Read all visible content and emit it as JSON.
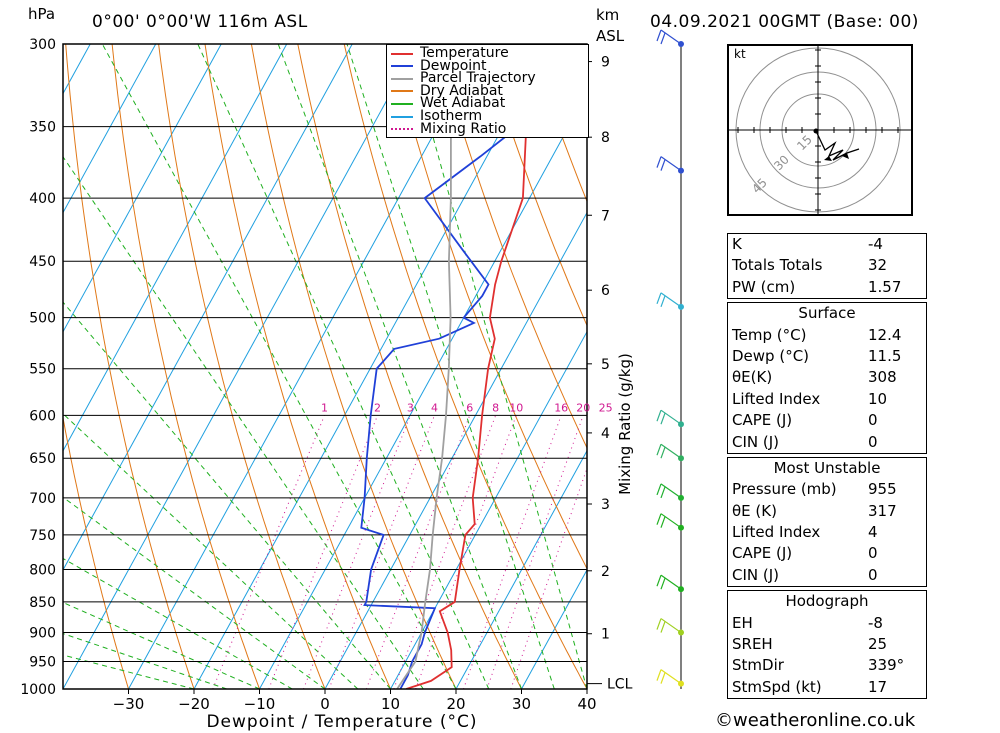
{
  "header": {
    "location": "0°00' 0°00'W 116m ASL",
    "datetime": "04.09.2021 00GMT (Base: 00)",
    "pressure_unit": "hPa",
    "height_unit_line1": "km",
    "height_unit_line2": "ASL"
  },
  "chart_data": {
    "type": "line",
    "title": "",
    "xlabel": "Dewpoint / Temperature (°C)",
    "ylabel": "hPa",
    "y2label": "Mixing Ratio (g/kg)",
    "y_scale": "log",
    "xlim": [
      -40,
      40
    ],
    "ylim": [
      1000,
      300
    ],
    "x_ticks": [
      -30,
      -20,
      -10,
      0,
      10,
      20,
      30,
      40
    ],
    "pressure_levels": [
      300,
      350,
      400,
      450,
      500,
      550,
      600,
      650,
      700,
      750,
      800,
      850,
      900,
      950,
      1000
    ],
    "height_km_ticks": [
      {
        "km": "1",
        "p": 902
      },
      {
        "km": "2",
        "p": 802
      },
      {
        "km": "3",
        "p": 708
      },
      {
        "km": "4",
        "p": 620
      },
      {
        "km": "5",
        "p": 545
      },
      {
        "km": "6",
        "p": 475
      },
      {
        "km": "7",
        "p": 413
      },
      {
        "km": "8",
        "p": 357
      },
      {
        "km": "9",
        "p": 310
      }
    ],
    "lcl": {
      "label": "LCL",
      "p": 990
    },
    "mixing_ratio_labels": [
      "1",
      "2",
      "3",
      "4",
      "6",
      "8",
      "10",
      "16",
      "20",
      "25"
    ],
    "legend": [
      {
        "name": "Temperature",
        "color": "#e03030"
      },
      {
        "name": "Dewpoint",
        "color": "#2040d8"
      },
      {
        "name": "Parcel Trajectory",
        "color": "#a0a0a0"
      },
      {
        "name": "Dry Adiabat",
        "color": "#e07818"
      },
      {
        "name": "Wet Adiabat",
        "color": "#20b020"
      },
      {
        "name": "Isotherm",
        "color": "#20a0e0"
      },
      {
        "name": "Mixing Ratio",
        "color": "#d01890"
      }
    ],
    "series": [
      {
        "name": "Temperature",
        "color": "#e03030",
        "points": [
          [
            1000,
            12.4
          ],
          [
            985,
            15.5
          ],
          [
            960,
            17.5
          ],
          [
            930,
            16
          ],
          [
            900,
            14
          ],
          [
            865,
            11
          ],
          [
            850,
            12.5
          ],
          [
            800,
            10.5
          ],
          [
            750,
            8.5
          ],
          [
            735,
            9
          ],
          [
            700,
            6.5
          ],
          [
            650,
            4
          ],
          [
            600,
            1
          ],
          [
            550,
            -2
          ],
          [
            520,
            -3.5
          ],
          [
            500,
            -6
          ],
          [
            470,
            -8
          ],
          [
            450,
            -9
          ],
          [
            400,
            -11
          ],
          [
            350,
            -16.5
          ],
          [
            300,
            -22
          ]
        ]
      },
      {
        "name": "Dewpoint",
        "color": "#2040d8",
        "points": [
          [
            1000,
            11.5
          ],
          [
            975,
            11.5
          ],
          [
            950,
            11
          ],
          [
            920,
            11
          ],
          [
            900,
            10.5
          ],
          [
            860,
            10
          ],
          [
            855,
            -1
          ],
          [
            850,
            -1
          ],
          [
            800,
            -3
          ],
          [
            750,
            -4
          ],
          [
            740,
            -8
          ],
          [
            700,
            -10
          ],
          [
            650,
            -13
          ],
          [
            600,
            -16
          ],
          [
            550,
            -19
          ],
          [
            530,
            -18
          ],
          [
            520,
            -12
          ],
          [
            505,
            -8
          ],
          [
            500,
            -10
          ],
          [
            480,
            -9
          ],
          [
            470,
            -9
          ],
          [
            440,
            -16
          ],
          [
            400,
            -26
          ],
          [
            370,
            -21
          ],
          [
            340,
            -16
          ],
          [
            310,
            -13
          ],
          [
            300,
            -14
          ]
        ]
      },
      {
        "name": "Parcel Trajectory",
        "color": "#a0a0a0",
        "points": [
          [
            1000,
            11
          ],
          [
            950,
            11.5
          ],
          [
            900,
            10
          ],
          [
            850,
            8
          ],
          [
            800,
            6
          ],
          [
            750,
            3.5
          ],
          [
            700,
            1
          ],
          [
            650,
            -1.5
          ],
          [
            600,
            -4.5
          ],
          [
            550,
            -8
          ],
          [
            500,
            -12
          ],
          [
            450,
            -17
          ],
          [
            400,
            -22
          ],
          [
            350,
            -28
          ],
          [
            300,
            -35
          ]
        ]
      }
    ]
  },
  "hodograph": {
    "unit": "kt",
    "rings": [
      "15",
      "30",
      "45"
    ]
  },
  "wind_barbs": [
    {
      "p": 300,
      "color": "#3050d0"
    },
    {
      "p": 380,
      "color": "#3050d0"
    },
    {
      "p": 490,
      "color": "#30b0d0"
    },
    {
      "p": 610,
      "color": "#30b090"
    },
    {
      "p": 650,
      "color": "#30b060"
    },
    {
      "p": 700,
      "color": "#20b030"
    },
    {
      "p": 740,
      "color": "#20b020"
    },
    {
      "p": 830,
      "color": "#20b020"
    },
    {
      "p": 900,
      "color": "#a0d020"
    },
    {
      "p": 990,
      "color": "#e0e020"
    }
  ],
  "indices": {
    "general": [
      {
        "label": "K",
        "value": "-4"
      },
      {
        "label": "Totals Totals",
        "value": "32"
      },
      {
        "label": "PW (cm)",
        "value": "1.57"
      }
    ],
    "surface_title": "Surface",
    "surface": [
      {
        "label": "Temp (°C)",
        "value": "12.4"
      },
      {
        "label": "Dewp (°C)",
        "value": "11.5"
      },
      {
        "label": "θE(K)",
        "value": "308"
      },
      {
        "label": "Lifted Index",
        "value": "10"
      },
      {
        "label": "CAPE (J)",
        "value": "0"
      },
      {
        "label": "CIN (J)",
        "value": "0"
      }
    ],
    "unstable_title": "Most Unstable",
    "unstable": [
      {
        "label": "Pressure (mb)",
        "value": "955"
      },
      {
        "label": "θE (K)",
        "value": "317"
      },
      {
        "label": "Lifted Index",
        "value": "4"
      },
      {
        "label": "CAPE (J)",
        "value": "0"
      },
      {
        "label": "CIN (J)",
        "value": "0"
      }
    ],
    "hodo_title": "Hodograph",
    "hodo": [
      {
        "label": "EH",
        "value": "-8"
      },
      {
        "label": "SREH",
        "value": "25"
      },
      {
        "label": "StmDir",
        "value": "339°"
      },
      {
        "label": "StmSpd (kt)",
        "value": "17"
      }
    ]
  },
  "footer": {
    "copyright": "©weatheronline.co.uk"
  }
}
